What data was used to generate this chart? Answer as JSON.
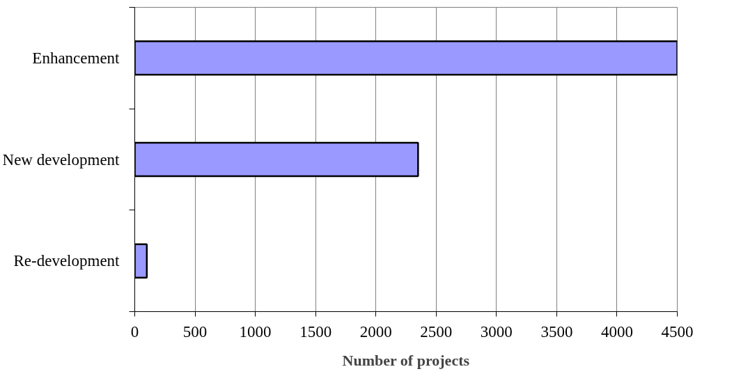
{
  "chart_data": {
    "type": "bar",
    "orientation": "horizontal",
    "xlabel": "Number of projects",
    "categories": [
      "Enhancement",
      "New development",
      "Re-development"
    ],
    "values": [
      4500,
      2350,
      100
    ],
    "color": "#9999ff",
    "xlim": [
      0,
      4500
    ],
    "xticks": [
      0,
      500,
      1000,
      1500,
      2000,
      2500,
      3000,
      3500,
      4000,
      4500
    ],
    "grid": "x"
  }
}
